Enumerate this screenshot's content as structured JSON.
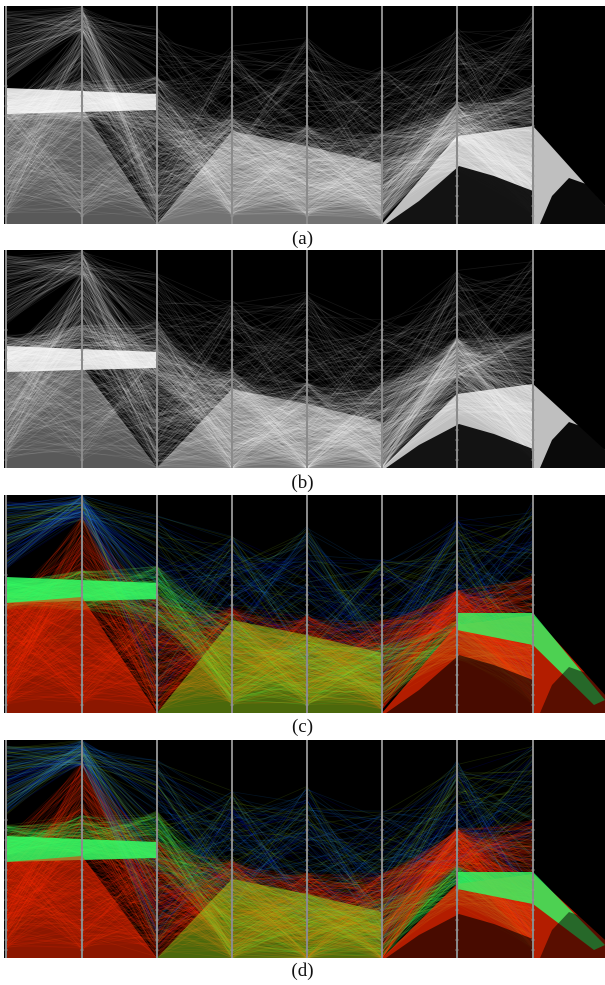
{
  "figure": {
    "panels": [
      {
        "caption": "(a)",
        "mode": "mono",
        "variant": "a"
      },
      {
        "caption": "(b)",
        "mode": "mono",
        "variant": "b"
      },
      {
        "caption": "(c)",
        "mode": "color",
        "variant": "c"
      },
      {
        "caption": "(d)",
        "mode": "color",
        "variant": "d"
      }
    ]
  },
  "chart_data": [
    {
      "type": "line",
      "subtype": "parallel-coordinates",
      "axes_count": 8,
      "background": "#000000",
      "line_color": "#ffffff",
      "axis_color": "#808080"
    },
    {
      "type": "line",
      "subtype": "parallel-coordinates",
      "axes_count": 8,
      "background": "#000000",
      "line_color": "#ffffff",
      "axis_color": "#808080"
    },
    {
      "type": "line",
      "subtype": "parallel-coordinates",
      "axes_count": 8,
      "background": "#000000",
      "axis_color": "#808080",
      "series_colors": [
        "#ff2a00",
        "#33ff66",
        "#a6e61a",
        "#1e90ff",
        "#0000ff"
      ]
    },
    {
      "type": "line",
      "subtype": "parallel-coordinates",
      "axes_count": 8,
      "background": "#000000",
      "axis_color": "#808080",
      "series_colors": [
        "#ff2a00",
        "#33ff66",
        "#a6e61a",
        "#1e90ff",
        "#0000ff"
      ]
    }
  ]
}
